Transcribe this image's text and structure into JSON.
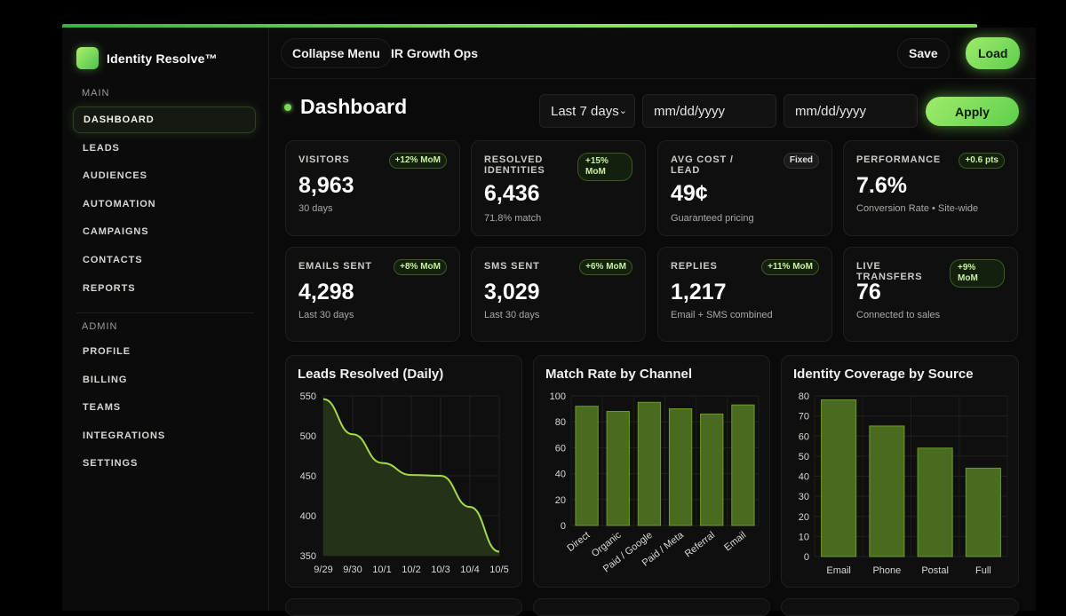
{
  "brand": {
    "name": "Identity Resolve™"
  },
  "sidebar": {
    "main_label": "MAIN",
    "main_items": [
      "DASHBOARD",
      "LEADS",
      "AUDIENCES",
      "AUTOMATION",
      "CAMPAIGNS",
      "CONTACTS",
      "REPORTS"
    ],
    "admin_label": "ADMIN",
    "admin_items": [
      "PROFILE",
      "BILLING",
      "TEAMS",
      "INTEGRATIONS",
      "SETTINGS"
    ],
    "active": "DASHBOARD"
  },
  "header": {
    "collapse_label": "Collapse Menu",
    "workspace_title": "IR Growth Ops",
    "save_label": "Save",
    "load_label": "Load"
  },
  "dashboard": {
    "title": "Dashboard",
    "range_value": "Last 7 days",
    "date_from_placeholder": "mm/dd/yyyy",
    "date_to_placeholder": "mm/dd/yyyy",
    "apply_label": "Apply"
  },
  "kpis": [
    {
      "label": "VISITORS",
      "badge": "+12% MoM",
      "value": "8,963",
      "sub": "30 days"
    },
    {
      "label": "RESOLVED IDENTITIES",
      "badge": "+15% MoM",
      "value": "6,436",
      "sub": "71.8% match"
    },
    {
      "label": "AVG COST / LEAD",
      "badge": "Fixed",
      "value": "49¢",
      "sub": "Guaranteed pricing"
    },
    {
      "label": "PERFORMANCE",
      "badge": "+0.6 pts",
      "value": "7.6%",
      "sub": "Conversion Rate • Site-wide"
    },
    {
      "label": "EMAILS SENT",
      "badge": "+8% MoM",
      "value": "4,298",
      "sub": "Last 30 days"
    },
    {
      "label": "SMS SENT",
      "badge": "+6% MoM",
      "value": "3,029",
      "sub": "Last 30 days"
    },
    {
      "label": "REPLIES",
      "badge": "+11% MoM",
      "value": "1,217",
      "sub": "Email + SMS combined"
    },
    {
      "label": "LIVE TRANSFERS",
      "badge": "+9% MoM",
      "value": "76",
      "sub": "Connected to sales"
    }
  ],
  "colors": {
    "accent": "#8ee06a",
    "bar_fill": "#4a6b1f",
    "bar_stroke": "#6e9a2e",
    "line": "#a3d94a"
  },
  "chart_data": [
    {
      "type": "area",
      "title": "Leads Resolved (Daily)",
      "categories": [
        "9/29",
        "9/30",
        "10/1",
        "10/2",
        "10/3",
        "10/4",
        "10/5"
      ],
      "values": [
        546,
        502,
        466,
        451,
        450,
        411,
        355
      ],
      "ylim": [
        350,
        550
      ],
      "yticks": [
        350,
        400,
        450,
        500,
        550
      ],
      "grid": true
    },
    {
      "type": "bar",
      "title": "Match Rate by Channel",
      "categories": [
        "Direct",
        "Organic",
        "Paid / Google",
        "Paid / Meta",
        "Referral",
        "Email"
      ],
      "values": [
        92,
        88,
        95,
        90,
        86,
        93
      ],
      "ylim": [
        0,
        100
      ],
      "yticks": [
        0,
        20,
        40,
        60,
        80,
        100
      ],
      "rotated_labels": true,
      "grid": true
    },
    {
      "type": "bar",
      "title": "Identity Coverage by Source",
      "categories": [
        "Email",
        "Phone",
        "Postal",
        "Full"
      ],
      "values": [
        78,
        65,
        54,
        44
      ],
      "ylim": [
        0,
        80
      ],
      "yticks": [
        0,
        10,
        20,
        30,
        40,
        50,
        60,
        70,
        80
      ],
      "grid": true
    }
  ]
}
